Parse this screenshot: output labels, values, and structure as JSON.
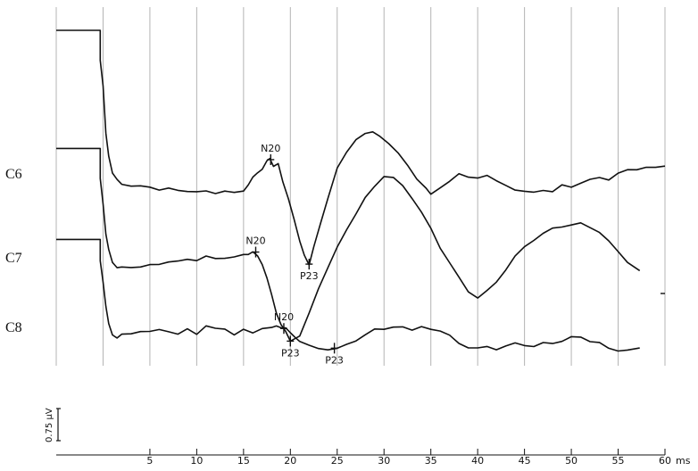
{
  "chart_data": {
    "type": "line",
    "title": "",
    "xlabel": "",
    "x_unit": "ms",
    "xlim": [
      -5,
      60
    ],
    "x_ticks": [
      5,
      10,
      15,
      20,
      25,
      30,
      35,
      40,
      45,
      50,
      55,
      60
    ],
    "gridlines_x": [
      -5,
      0,
      5,
      10,
      15,
      20,
      25,
      30,
      35,
      40,
      45,
      50,
      55,
      60
    ],
    "grid": true,
    "legend": "none",
    "scale_bar": {
      "label": "0.75 µV",
      "value": 0.75,
      "unit": "µV"
    },
    "series": [
      {
        "name": "C6",
        "x": [
          -5,
          -0.3,
          -0.3,
          0,
          0.3,
          0.6,
          1,
          1.5,
          2,
          3,
          4,
          5,
          6,
          7,
          8,
          9,
          10,
          11,
          12,
          13,
          14,
          15,
          15.5,
          16,
          16.5,
          17,
          17.5,
          17.8,
          18.2,
          18.7,
          19.2,
          19.8,
          20.4,
          21,
          21.5,
          22,
          22.5,
          23.2,
          24,
          25,
          26,
          27,
          28,
          28.8,
          29.5,
          30.5,
          31.5,
          32.5,
          33.5,
          34.5,
          35,
          36,
          37,
          38,
          39,
          40,
          41,
          42,
          43,
          44,
          45,
          46,
          47,
          48,
          49,
          50,
          51,
          52,
          53,
          54,
          55,
          56,
          57,
          58,
          59,
          60
        ],
        "y": [
          1.75,
          1.75,
          1.4,
          1.1,
          0.55,
          0.3,
          0.1,
          0.0,
          -0.05,
          -0.07,
          -0.09,
          -0.1,
          -0.12,
          -0.11,
          -0.13,
          -0.12,
          -0.13,
          -0.12,
          -0.13,
          -0.11,
          -0.14,
          -0.11,
          -0.05,
          0.02,
          0.08,
          0.12,
          0.2,
          0.24,
          0.16,
          0.18,
          -0.02,
          -0.2,
          -0.45,
          -0.7,
          -0.85,
          -0.98,
          -0.78,
          -0.5,
          -0.22,
          0.12,
          0.32,
          0.46,
          0.52,
          0.56,
          0.52,
          0.42,
          0.33,
          0.2,
          0.02,
          -0.08,
          -0.14,
          -0.09,
          -0.02,
          0.08,
          0.02,
          0.0,
          0.05,
          -0.02,
          -0.08,
          -0.11,
          -0.12,
          -0.14,
          -0.1,
          -0.11,
          -0.05,
          -0.07,
          -0.02,
          0.0,
          0.02,
          0.0,
          0.06,
          0.1,
          0.12,
          0.14,
          0.14,
          0.18
        ]
      },
      {
        "name": "C7",
        "x": [
          -5,
          -0.3,
          -0.3,
          0,
          0.3,
          0.6,
          1,
          1.5,
          2,
          3,
          4,
          5,
          6,
          7,
          8,
          9,
          10,
          11,
          12,
          13,
          14,
          15,
          15.5,
          16,
          16.5,
          17,
          17.5,
          18,
          18.5,
          19,
          19.5,
          20,
          21,
          22,
          23,
          24,
          25,
          26,
          27,
          28,
          29,
          30,
          31,
          32,
          33,
          34,
          35,
          36,
          37,
          38,
          39,
          40,
          41,
          42,
          43,
          44,
          45,
          46,
          47,
          48,
          49,
          50,
          51,
          52,
          53,
          54,
          55,
          56,
          57.3
        ],
        "y": [
          1.35,
          1.35,
          1.0,
          0.7,
          0.35,
          0.15,
          0.02,
          -0.05,
          -0.04,
          -0.02,
          -0.02,
          0.0,
          0.02,
          0.04,
          0.03,
          0.06,
          0.04,
          0.07,
          0.05,
          0.06,
          0.06,
          0.1,
          0.12,
          0.14,
          0.1,
          0.02,
          -0.15,
          -0.35,
          -0.55,
          -0.7,
          -0.8,
          -0.9,
          -0.85,
          -0.6,
          -0.3,
          -0.05,
          0.18,
          0.4,
          0.6,
          0.78,
          0.92,
          1.05,
          1.02,
          0.92,
          0.78,
          0.6,
          0.4,
          0.18,
          0.0,
          -0.18,
          -0.33,
          -0.4,
          -0.32,
          -0.2,
          -0.05,
          0.1,
          0.22,
          0.3,
          0.36,
          0.42,
          0.44,
          0.44,
          0.46,
          0.42,
          0.35,
          0.25,
          0.15,
          0.02,
          -0.08
        ]
      },
      {
        "name": "C8",
        "x": [
          -5,
          -0.3,
          -0.3,
          0,
          0.3,
          0.6,
          1,
          1.5,
          2,
          3,
          4,
          5,
          6,
          7,
          8,
          9,
          10,
          11,
          12,
          13,
          14,
          15,
          16,
          17,
          18,
          18.5,
          19,
          19.5,
          20,
          20.5,
          21,
          22,
          23,
          24,
          25,
          26,
          27,
          28,
          29,
          30,
          31,
          32,
          33,
          34,
          35,
          36,
          37,
          38,
          39,
          40,
          41,
          42,
          43,
          44,
          45,
          46,
          47,
          48,
          49,
          50,
          51,
          52,
          53,
          54,
          55,
          56,
          57.3
        ],
        "y": [
          1.1,
          1.1,
          0.85,
          0.6,
          0.32,
          0.12,
          0.0,
          -0.04,
          -0.02,
          -0.01,
          0.02,
          0.0,
          0.03,
          0.02,
          -0.02,
          0.05,
          0.01,
          0.1,
          0.07,
          0.08,
          0.0,
          0.05,
          0.02,
          0.06,
          0.05,
          0.08,
          0.06,
          0.04,
          0.0,
          -0.04,
          -0.1,
          -0.13,
          -0.15,
          -0.18,
          -0.16,
          -0.1,
          -0.08,
          -0.02,
          0.06,
          0.04,
          0.05,
          0.07,
          0.03,
          0.06,
          0.05,
          0.04,
          -0.02,
          -0.1,
          -0.14,
          -0.16,
          -0.14,
          -0.17,
          -0.15,
          -0.12,
          -0.14,
          -0.17,
          -0.13,
          -0.12,
          -0.1,
          -0.05,
          -0.03,
          -0.08,
          -0.1,
          -0.15,
          -0.18,
          -0.19,
          -0.16
        ]
      }
    ],
    "annotations": [
      {
        "series": "C6",
        "label": "N20",
        "x": 17.9,
        "y": 0.24,
        "label_side": "above"
      },
      {
        "series": "C6",
        "label": "P23",
        "x": 22.0,
        "y": -0.98,
        "label_side": "below"
      },
      {
        "series": "C7",
        "label": "N20",
        "x": 16.3,
        "y": 0.14,
        "label_side": "above"
      },
      {
        "series": "C7",
        "label": "P23",
        "x": 20.0,
        "y": -0.9,
        "label_side": "below"
      },
      {
        "series": "C8",
        "label": "N20",
        "x": 19.3,
        "y": 0.06,
        "label_side": "above"
      },
      {
        "series": "C8",
        "label": "P23",
        "x": 24.7,
        "y": -0.17,
        "label_side": "below"
      }
    ]
  }
}
